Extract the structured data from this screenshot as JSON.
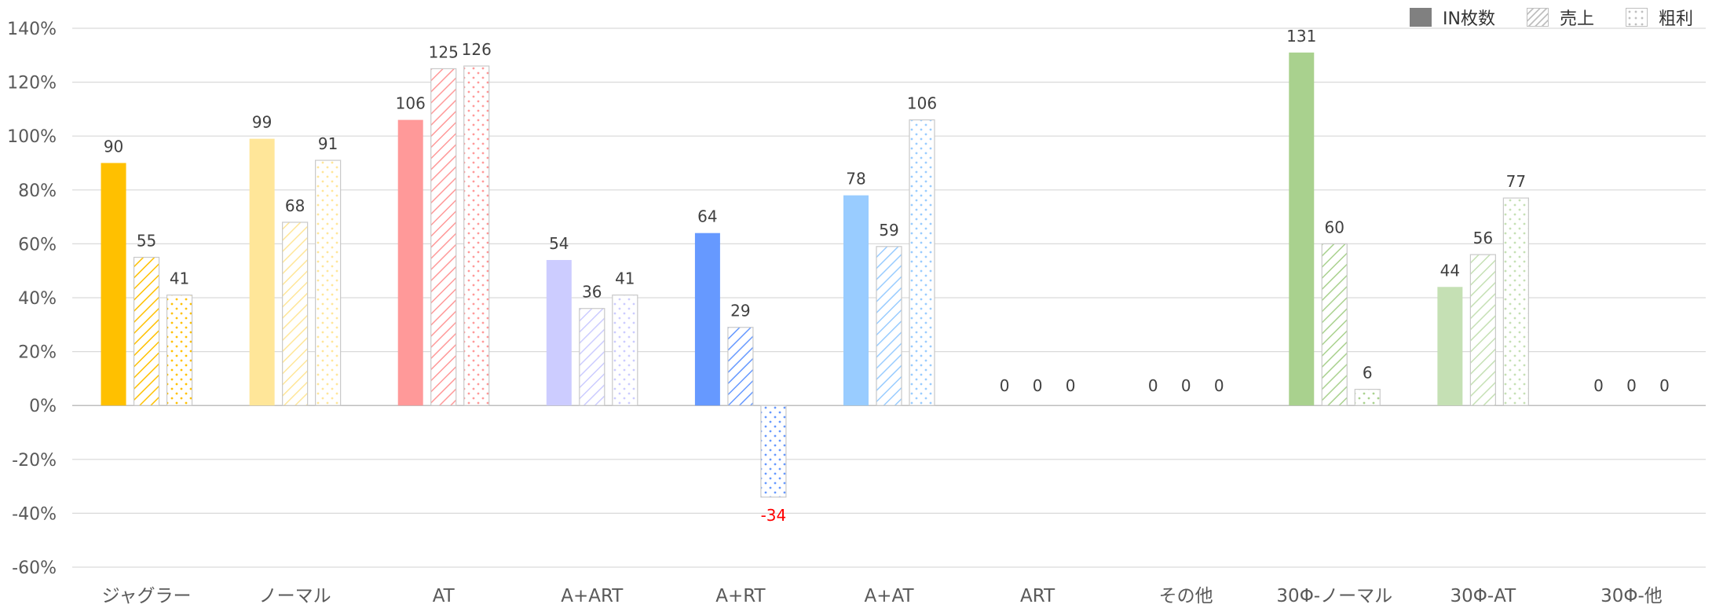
{
  "chart_data": {
    "type": "bar",
    "categories": [
      "ジャグラー",
      "ノーマル",
      "AT",
      "A+ART",
      "A+RT",
      "A+AT",
      "ART",
      "その他",
      "30Φ-ノーマル",
      "30Φ-AT",
      "30Φ-他"
    ],
    "series": [
      {
        "name": "IN枚数",
        "pattern": "solid",
        "values": [
          90,
          99,
          106,
          54,
          64,
          78,
          0,
          0,
          131,
          44,
          0
        ]
      },
      {
        "name": "売上",
        "pattern": "hatch",
        "values": [
          55,
          68,
          125,
          36,
          29,
          59,
          0,
          0,
          60,
          56,
          0
        ]
      },
      {
        "name": "粗利",
        "pattern": "dots",
        "values": [
          41,
          91,
          126,
          41,
          -34,
          106,
          0,
          0,
          6,
          77,
          0
        ]
      }
    ],
    "category_colors": [
      "#FFC000",
      "#FFE699",
      "#FF9999",
      "#CCCCFF",
      "#6699FF",
      "#99CCFF",
      "#BFBFBF",
      "#BFBFBF",
      "#A9D18E",
      "#C5E0B4",
      "#BFBFBF"
    ],
    "y_ticks": [
      "140%",
      "120%",
      "100%",
      "80%",
      "60%",
      "40%",
      "20%",
      "0%",
      "-20%",
      "-40%",
      "-60%"
    ],
    "ylim": [
      -60,
      140
    ],
    "y_unit": "%",
    "grid": true,
    "legend_position": "top-right",
    "legend_colors": [
      "#808080",
      "#BFBFBF",
      "#BFBFBF"
    ],
    "negative_label_color": "#FF0000"
  }
}
